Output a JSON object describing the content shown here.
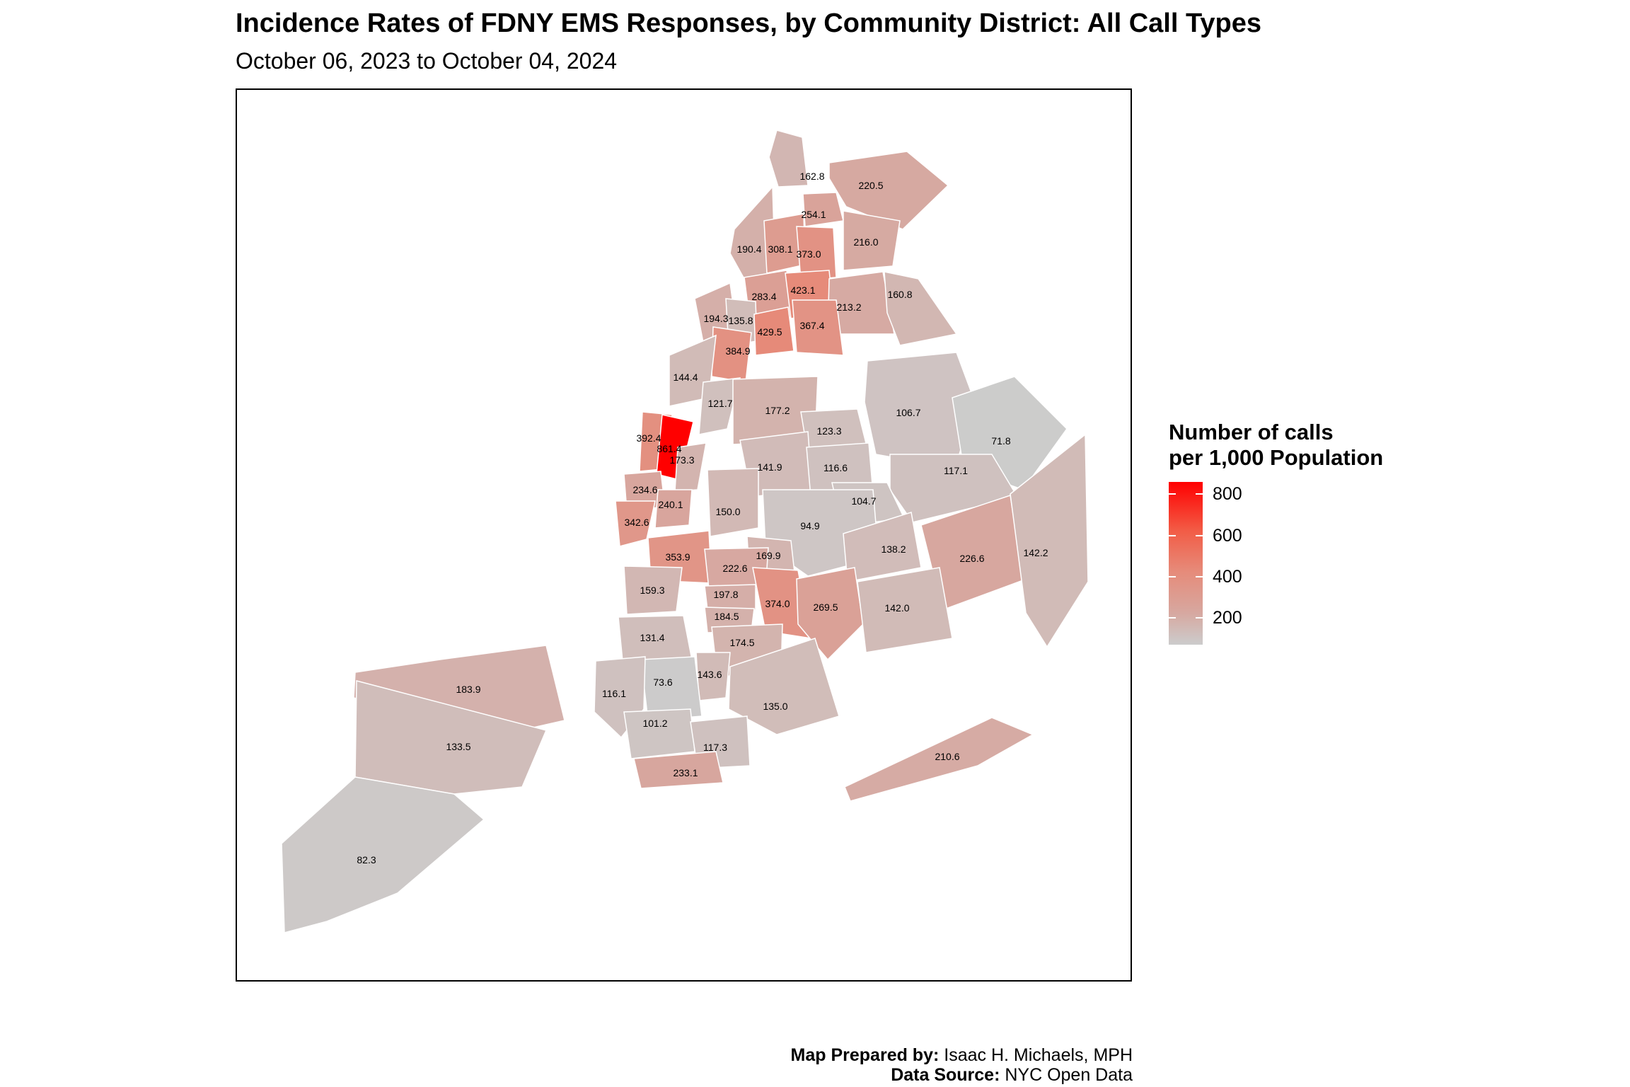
{
  "title": "Incidence Rates of FDNY EMS Responses, by Community District: All Call Types",
  "subtitle": "October 06, 2023 to October 04, 2024",
  "legend": {
    "title_line1": "Number of calls",
    "title_line2": "per 1,000 Population",
    "range": [
      70,
      860
    ],
    "ticks": [
      {
        "value": 200,
        "label": "200"
      },
      {
        "value": 400,
        "label": "400"
      },
      {
        "value": 600,
        "label": "600"
      },
      {
        "value": 800,
        "label": "800"
      }
    ],
    "color_low": "#cccccc",
    "color_high": "#ff0000"
  },
  "districts": [
    {
      "label": "162.8",
      "value": 162.8
    },
    {
      "label": "220.5",
      "value": 220.5
    },
    {
      "label": "254.1",
      "value": 254.1
    },
    {
      "label": "190.4",
      "value": 190.4
    },
    {
      "label": "308.1",
      "value": 308.1
    },
    {
      "label": "373.0",
      "value": 373.0
    },
    {
      "label": "216.0",
      "value": 216.0
    },
    {
      "label": "283.4",
      "value": 283.4
    },
    {
      "label": "423.1",
      "value": 423.1
    },
    {
      "label": "213.2",
      "value": 213.2
    },
    {
      "label": "160.8",
      "value": 160.8
    },
    {
      "label": "194.3",
      "value": 194.3
    },
    {
      "label": "135.8",
      "value": 135.8
    },
    {
      "label": "429.5",
      "value": 429.5
    },
    {
      "label": "367.4",
      "value": 367.4
    },
    {
      "label": "384.9",
      "value": 384.9
    },
    {
      "label": "144.4",
      "value": 144.4
    },
    {
      "label": "121.7",
      "value": 121.7
    },
    {
      "label": "177.2",
      "value": 177.2
    },
    {
      "label": "106.7",
      "value": 106.7
    },
    {
      "label": "123.3",
      "value": 123.3
    },
    {
      "label": "71.8",
      "value": 71.8
    },
    {
      "label": "392.4",
      "value": 392.4
    },
    {
      "label": "861.4",
      "value": 861.4
    },
    {
      "label": "173.3",
      "value": 173.3
    },
    {
      "label": "141.9",
      "value": 141.9
    },
    {
      "label": "116.6",
      "value": 116.6
    },
    {
      "label": "117.1",
      "value": 117.1
    },
    {
      "label": "234.6",
      "value": 234.6
    },
    {
      "label": "240.1",
      "value": 240.1
    },
    {
      "label": "150.0",
      "value": 150.0
    },
    {
      "label": "104.7",
      "value": 104.7
    },
    {
      "label": "342.6",
      "value": 342.6
    },
    {
      "label": "94.9",
      "value": 94.9
    },
    {
      "label": "353.9",
      "value": 353.9
    },
    {
      "label": "169.9",
      "value": 169.9
    },
    {
      "label": "138.2",
      "value": 138.2
    },
    {
      "label": "226.6",
      "value": 226.6
    },
    {
      "label": "142.2",
      "value": 142.2
    },
    {
      "label": "222.6",
      "value": 222.6
    },
    {
      "label": "159.3",
      "value": 159.3
    },
    {
      "label": "197.8",
      "value": 197.8
    },
    {
      "label": "374.0",
      "value": 374.0
    },
    {
      "label": "269.5",
      "value": 269.5
    },
    {
      "label": "142.0",
      "value": 142.0
    },
    {
      "label": "184.5",
      "value": 184.5
    },
    {
      "label": "131.4",
      "value": 131.4
    },
    {
      "label": "174.5",
      "value": 174.5
    },
    {
      "label": "183.9",
      "value": 183.9
    },
    {
      "label": "143.6",
      "value": 143.6
    },
    {
      "label": "73.6",
      "value": 73.6
    },
    {
      "label": "116.1",
      "value": 116.1
    },
    {
      "label": "135.0",
      "value": 135.0
    },
    {
      "label": "133.5",
      "value": 133.5
    },
    {
      "label": "101.2",
      "value": 101.2
    },
    {
      "label": "117.3",
      "value": 117.3
    },
    {
      "label": "210.6",
      "value": 210.6
    },
    {
      "label": "233.1",
      "value": 233.1
    },
    {
      "label": "82.3",
      "value": 82.3
    }
  ],
  "caption": {
    "prepared_label": "Map Prepared by:",
    "prepared_value": " Isaac H. Michaels, MPH",
    "source_label": "Data Source:",
    "source_value": " NYC Open Data"
  }
}
